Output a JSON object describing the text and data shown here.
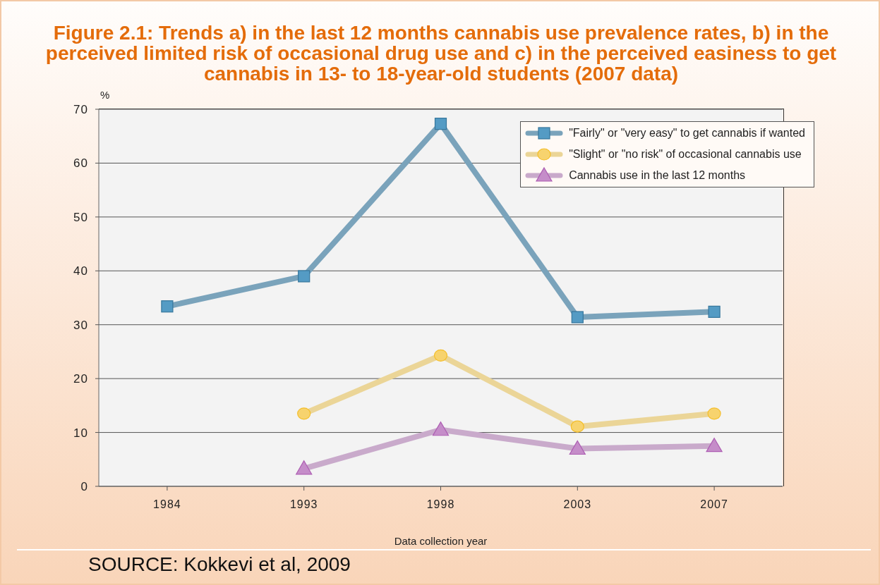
{
  "chart_data": {
    "type": "line",
    "title": "Figure 2.1: Trends a) in the last 12 months cannabis use prevalence rates, b) in the perceived limited risk of occasional drug use and c) in the perceived easiness to get cannabis in 13- to 18-year-old students (2007 data)",
    "ylabel": "%",
    "xlabel": "Data collection year",
    "annotations": [
      "SOURCE: Kokkevi et al, 2009"
    ],
    "categories": [
      "1984",
      "1993",
      "1998",
      "2003",
      "2007"
    ],
    "series": [
      {
        "name": "\"Fairly\" or \"very easy\" to get cannabis if wanted",
        "color": "#7aa3bb",
        "marker": "square",
        "values": [
          33.4,
          39,
          67.3,
          31.4,
          32.4
        ]
      },
      {
        "name": "\"Slight\" or \"no risk\" of occasional cannabis use",
        "color": "#ebd597",
        "marker": "circle",
        "values": [
          null,
          13.5,
          24.3,
          11.1,
          13.5
        ]
      },
      {
        "name": "Cannabis use in the last 12 months",
        "color": "#c9aacb",
        "marker": "triangle",
        "values": [
          null,
          3.3,
          10.5,
          7,
          7.5
        ]
      }
    ],
    "ylim": [
      0,
      70
    ],
    "yticks": [
      0,
      10,
      20,
      30,
      40,
      50,
      60,
      70
    ],
    "grid": "y",
    "legend": "top right",
    "line_style": "solid"
  }
}
